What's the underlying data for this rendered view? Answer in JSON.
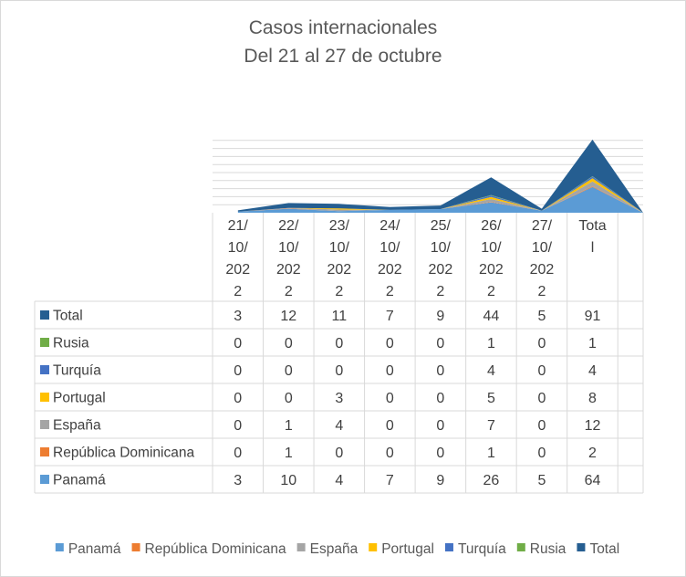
{
  "title": "Casos internacionales",
  "subtitle": "Del 21 al 27 de octubre",
  "chart_data": {
    "type": "area",
    "stacked": true,
    "categories": [
      "21/10/2022",
      "22/10/2022",
      "23/10/2022",
      "24/10/2022",
      "25/10/2022",
      "26/10/2022",
      "27/10/2022",
      "Total"
    ],
    "category_labels_wrapped": [
      [
        "21/",
        "10/",
        "202",
        "2"
      ],
      [
        "22/",
        "10/",
        "202",
        "2"
      ],
      [
        "23/",
        "10/",
        "202",
        "2"
      ],
      [
        "24/",
        "10/",
        "202",
        "2"
      ],
      [
        "25/",
        "10/",
        "202",
        "2"
      ],
      [
        "26/",
        "10/",
        "202",
        "2"
      ],
      [
        "27/",
        "10/",
        "202",
        "2"
      ],
      [
        "Tota",
        "l"
      ]
    ],
    "series": [
      {
        "name": "Panamá",
        "color": "#5b9bd5",
        "values": [
          3,
          10,
          4,
          7,
          9,
          26,
          5,
          64
        ]
      },
      {
        "name": "República Dominicana",
        "color": "#ed7d31",
        "values": [
          0,
          1,
          0,
          0,
          0,
          1,
          0,
          2
        ]
      },
      {
        "name": "España",
        "color": "#a5a5a5",
        "values": [
          0,
          1,
          4,
          0,
          0,
          7,
          0,
          12
        ]
      },
      {
        "name": "Portugal",
        "color": "#ffc000",
        "values": [
          0,
          0,
          3,
          0,
          0,
          5,
          0,
          8
        ]
      },
      {
        "name": "Turquía",
        "color": "#4472c4",
        "values": [
          0,
          0,
          0,
          0,
          0,
          4,
          0,
          4
        ]
      },
      {
        "name": "Rusia",
        "color": "#70ad47",
        "values": [
          0,
          0,
          0,
          0,
          0,
          1,
          0,
          1
        ]
      },
      {
        "name": "Total",
        "color": "#255e91",
        "values": [
          3,
          12,
          11,
          7,
          9,
          44,
          5,
          91
        ]
      }
    ],
    "table_row_order": [
      "Total",
      "Rusia",
      "Turquía",
      "Portugal",
      "España",
      "República Dominicana",
      "Panamá"
    ],
    "legend_position": "bottom",
    "data_table": true,
    "gridlines": true
  }
}
